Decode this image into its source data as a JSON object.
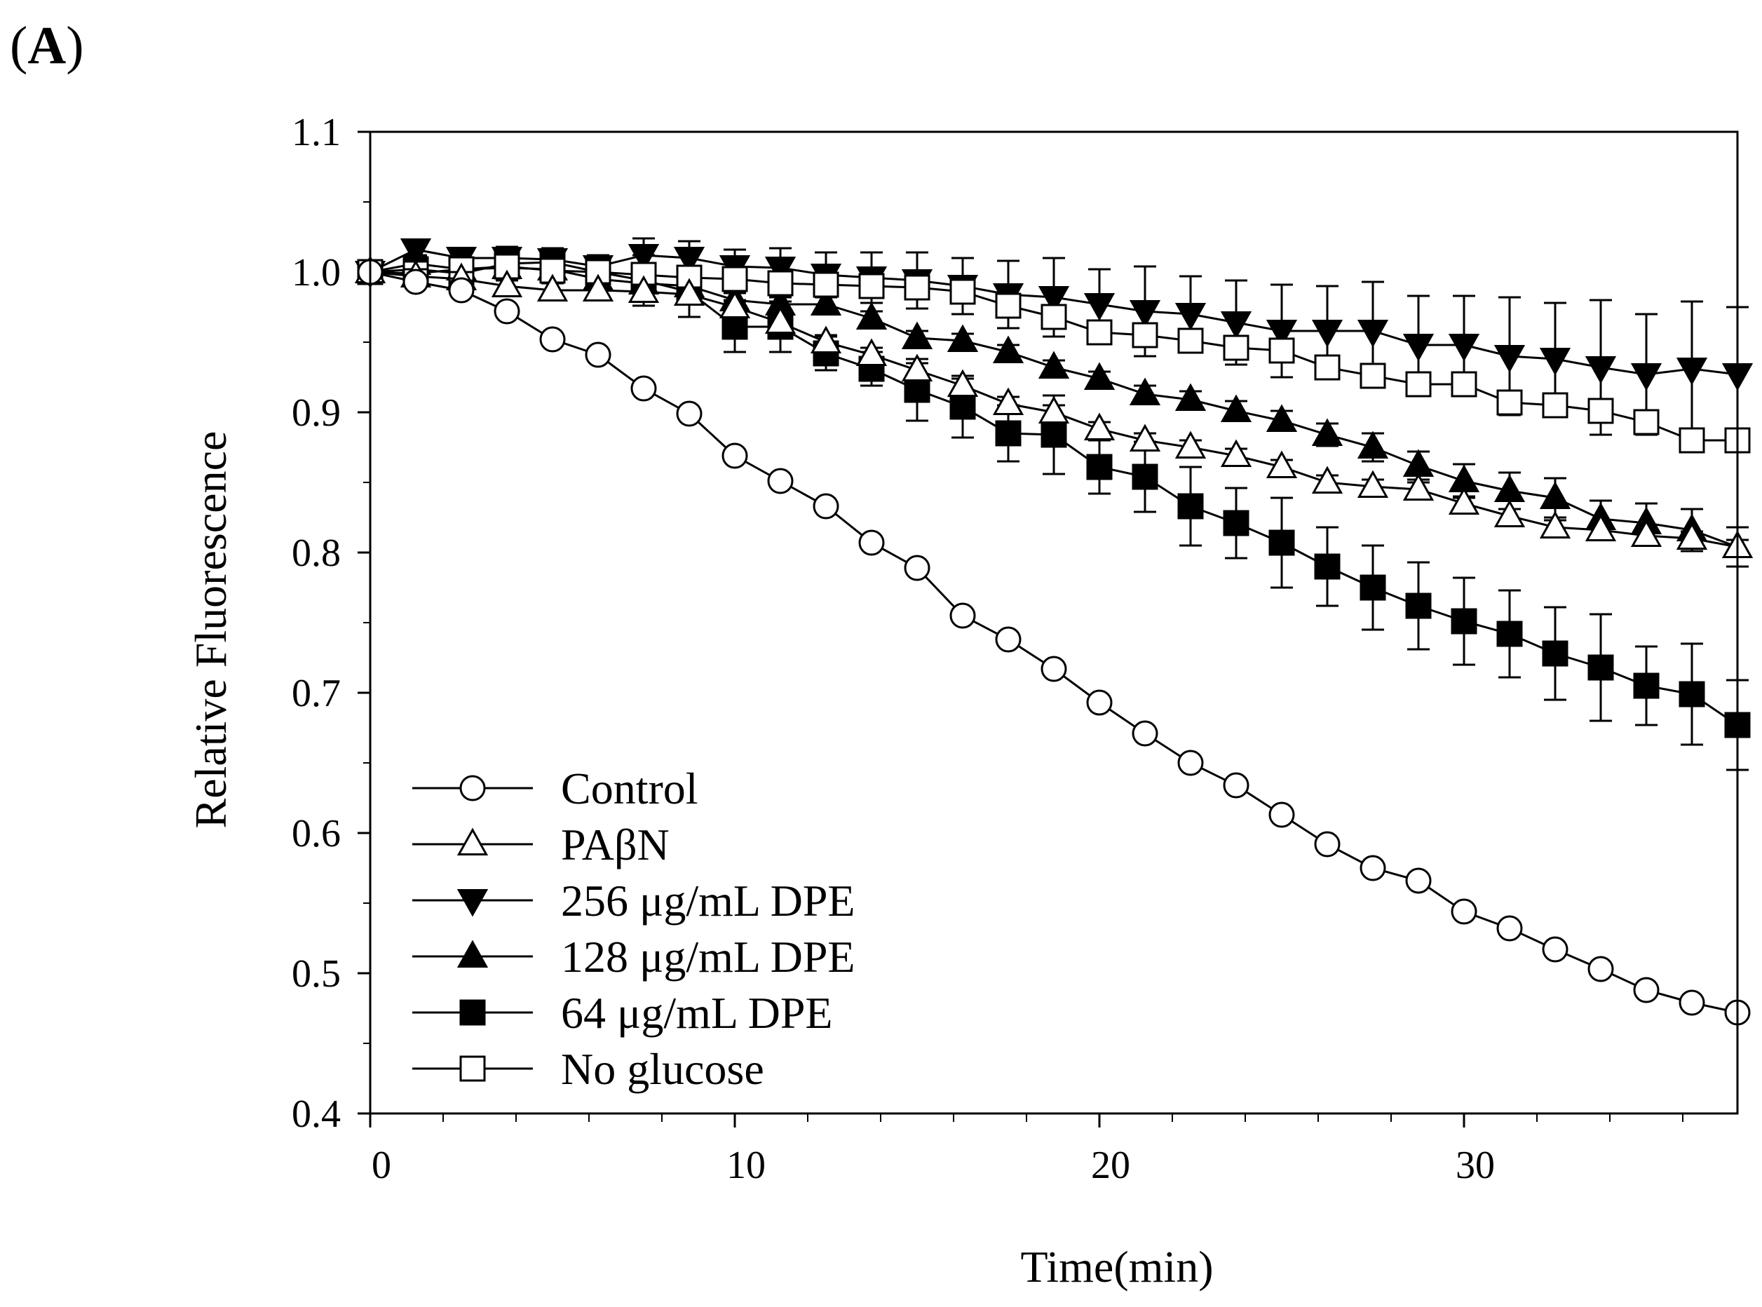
{
  "panel_label": "A",
  "chart_data": {
    "type": "line",
    "title": "",
    "xlabel": "Time(min)",
    "ylabel": "Relative Fluorescence",
    "xlim": [
      0,
      37.5
    ],
    "ylim": [
      0.4,
      1.1
    ],
    "x_ticks": [
      0,
      10,
      20,
      30
    ],
    "y_ticks": [
      0.4,
      0.5,
      0.6,
      0.7,
      0.8,
      0.9,
      1.0,
      1.1
    ],
    "y_tick_labels": [
      "0.4",
      "0.5",
      "0.6",
      "0.7",
      "0.8",
      "0.9",
      "1.0",
      "1.1"
    ],
    "x_tick_labels": [
      "0",
      "10",
      "20",
      "30"
    ],
    "legend_position": "bottom-left",
    "x": [
      0,
      1.25,
      2.5,
      3.75,
      5,
      6.25,
      7.5,
      8.75,
      10,
      11.25,
      12.5,
      13.75,
      15,
      16.25,
      17.5,
      18.75,
      20,
      21.25,
      22.5,
      23.75,
      25,
      26.25,
      27.5,
      28.75,
      30,
      31.25,
      32.5,
      33.75,
      35,
      36.25,
      37.5
    ],
    "series": [
      {
        "name": "Control",
        "marker": "circle-open",
        "values": [
          1.0,
          0.993,
          0.987,
          0.972,
          0.952,
          0.941,
          0.917,
          0.899,
          0.869,
          0.851,
          0.833,
          0.807,
          0.789,
          0.755,
          0.738,
          0.717,
          0.693,
          0.671,
          0.65,
          0.634,
          0.613,
          0.592,
          0.575,
          0.566,
          0.544,
          0.532,
          0.517,
          0.503,
          0.488,
          0.479,
          0.472
        ],
        "errors": [
          0.001,
          0.003,
          0.003,
          0.004,
          0.004,
          0.003,
          0.003,
          0.003,
          0.003,
          0.003,
          0.003,
          0.003,
          0.003,
          0.003,
          0.003,
          0.003,
          0.003,
          0.003,
          0.003,
          0.003,
          0.003,
          0.003,
          0.003,
          0.003,
          0.003,
          0.003,
          0.003,
          0.003,
          0.003,
          0.003,
          0.003
        ]
      },
      {
        "name": "PAβN",
        "marker": "triangle-up-open",
        "values": [
          1.0,
          0.997,
          0.995,
          0.99,
          0.987,
          0.987,
          0.986,
          0.984,
          0.975,
          0.964,
          0.95,
          0.941,
          0.93,
          0.919,
          0.906,
          0.9,
          0.888,
          0.88,
          0.875,
          0.869,
          0.861,
          0.85,
          0.847,
          0.845,
          0.835,
          0.826,
          0.818,
          0.816,
          0.812,
          0.81,
          0.804
        ],
        "errors": [
          0.001,
          0.005,
          0.005,
          0.005,
          0.005,
          0.005,
          0.005,
          0.005,
          0.005,
          0.005,
          0.005,
          0.005,
          0.005,
          0.005,
          0.005,
          0.005,
          0.005,
          0.005,
          0.005,
          0.005,
          0.005,
          0.005,
          0.005,
          0.005,
          0.005,
          0.005,
          0.005,
          0.005,
          0.005,
          0.005,
          0.005
        ]
      },
      {
        "name": "256 μg/mL DPE",
        "marker": "triangle-down-filled",
        "values": [
          1.0,
          1.016,
          1.01,
          1.01,
          1.009,
          1.004,
          1.012,
          1.01,
          1.004,
          1.003,
          0.998,
          0.996,
          0.994,
          0.99,
          0.984,
          0.982,
          0.977,
          0.972,
          0.97,
          0.964,
          0.958,
          0.958,
          0.958,
          0.948,
          0.948,
          0.94,
          0.938,
          0.932,
          0.927,
          0.931,
          0.927
        ],
        "errors": [
          0.001,
          0.005,
          0.006,
          0.008,
          0.008,
          0.008,
          0.012,
          0.012,
          0.012,
          0.014,
          0.016,
          0.018,
          0.02,
          0.02,
          0.024,
          0.028,
          0.025,
          0.032,
          0.027,
          0.03,
          0.033,
          0.032,
          0.035,
          0.035,
          0.035,
          0.042,
          0.04,
          0.048,
          0.043,
          0.048,
          0.048
        ]
      },
      {
        "name": "128 μg/mL DPE",
        "marker": "triangle-up-filled",
        "values": [
          1.0,
          1.006,
          1.002,
          1.003,
          1.002,
          0.995,
          0.992,
          0.99,
          0.98,
          0.977,
          0.977,
          0.967,
          0.953,
          0.951,
          0.943,
          0.932,
          0.924,
          0.913,
          0.909,
          0.901,
          0.894,
          0.884,
          0.875,
          0.862,
          0.851,
          0.844,
          0.839,
          0.824,
          0.821,
          0.816,
          0.804
        ],
        "errors": [
          0.001,
          0.005,
          0.005,
          0.005,
          0.005,
          0.005,
          0.005,
          0.005,
          0.005,
          0.005,
          0.005,
          0.005,
          0.005,
          0.005,
          0.005,
          0.005,
          0.005,
          0.006,
          0.006,
          0.007,
          0.007,
          0.008,
          0.01,
          0.01,
          0.012,
          0.013,
          0.014,
          0.013,
          0.014,
          0.015,
          0.014
        ]
      },
      {
        "name": "64 μg/mL DPE",
        "marker": "square-filled",
        "values": [
          1.0,
          1.002,
          0.999,
          1.006,
          1.007,
          1.0,
          0.994,
          0.986,
          0.961,
          0.961,
          0.942,
          0.931,
          0.916,
          0.904,
          0.885,
          0.884,
          0.861,
          0.854,
          0.833,
          0.821,
          0.807,
          0.79,
          0.775,
          0.762,
          0.751,
          0.742,
          0.728,
          0.718,
          0.705,
          0.699,
          0.677
        ],
        "errors": [
          0.001,
          0.01,
          0.01,
          0.012,
          0.01,
          0.01,
          0.018,
          0.018,
          0.018,
          0.018,
          0.012,
          0.012,
          0.022,
          0.022,
          0.02,
          0.028,
          0.019,
          0.025,
          0.028,
          0.025,
          0.032,
          0.028,
          0.03,
          0.031,
          0.031,
          0.031,
          0.033,
          0.038,
          0.028,
          0.036,
          0.032
        ]
      },
      {
        "name": "No glucose",
        "marker": "square-open",
        "values": [
          1.0,
          0.999,
          1.002,
          1.004,
          1.001,
          1.0,
          0.998,
          0.996,
          0.995,
          0.992,
          0.991,
          0.99,
          0.989,
          0.986,
          0.976,
          0.968,
          0.957,
          0.955,
          0.951,
          0.946,
          0.944,
          0.932,
          0.926,
          0.92,
          0.92,
          0.907,
          0.905,
          0.901,
          0.893,
          0.88,
          0.88
        ],
        "errors": [
          0.001,
          0.006,
          0.006,
          0.006,
          0.006,
          0.006,
          0.006,
          0.006,
          0.006,
          0.006,
          0.006,
          0.006,
          0.006,
          0.008,
          0.008,
          0.008,
          0.008,
          0.008,
          0.008,
          0.008,
          0.008,
          0.008,
          0.008,
          0.008,
          0.008,
          0.008,
          0.008,
          0.008,
          0.008,
          0.008,
          0.008
        ]
      }
    ]
  }
}
